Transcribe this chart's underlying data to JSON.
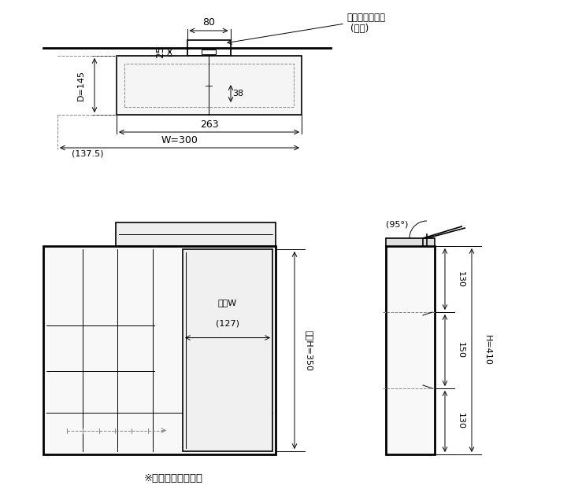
{
  "bg_color": "#ffffff",
  "line_color": "#000000",
  "dashed_color": "#888888",
  "title_text": "※図は左開きの場合",
  "label_bracket": "取付ブラケット",
  "label_accessory": "(付属)",
  "dim_80": "80",
  "dim_25": "25",
  "dim_38": "38",
  "dim_D145": "D=145",
  "dim_263": "263",
  "dim_W300": "W=300",
  "dim_1375": "(137.5)",
  "dim_kaiko_W": "開口W",
  "dim_kaiko_W2": "(127)",
  "dim_kaiko_H": "開口H=350",
  "dim_95": "(95°)",
  "dim_130a": "130",
  "dim_150": "150",
  "dim_130b": "130",
  "dim_H410": "H=410"
}
